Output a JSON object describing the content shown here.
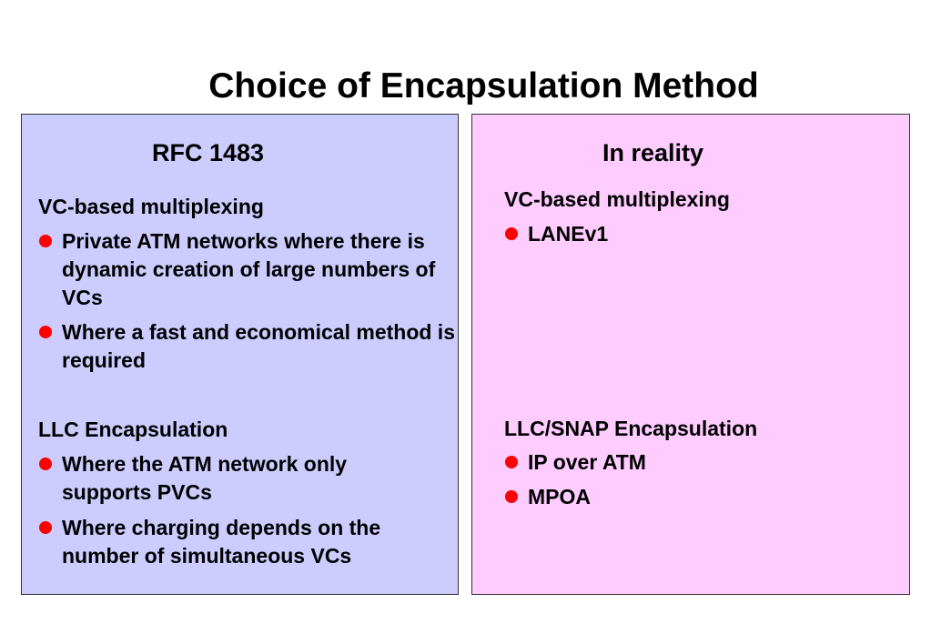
{
  "title": "Choice of Encapsulation Method",
  "colors": {
    "left_panel_bg": "#ccccff",
    "right_panel_bg": "#ffccff",
    "bullet": "#ff0000"
  },
  "left_panel": {
    "heading": "RFC 1483",
    "sections": [
      {
        "heading": "VC-based multiplexing",
        "bullets": [
          "Private ATM networks where there is dynamic creation of large numbers of VCs",
          "Where a fast and economical method is required"
        ]
      },
      {
        "heading": "LLC Encapsulation",
        "bullets": [
          "Where the ATM network only supports PVCs",
          "Where charging depends on the number of simultaneous VCs"
        ]
      }
    ]
  },
  "right_panel": {
    "heading": "In reality",
    "sections": [
      {
        "heading": "VC-based multiplexing",
        "bullets": [
          "LANEv1"
        ]
      },
      {
        "heading": "LLC/SNAP Encapsulation",
        "bullets": [
          "IP over ATM",
          "MPOA"
        ]
      }
    ]
  }
}
